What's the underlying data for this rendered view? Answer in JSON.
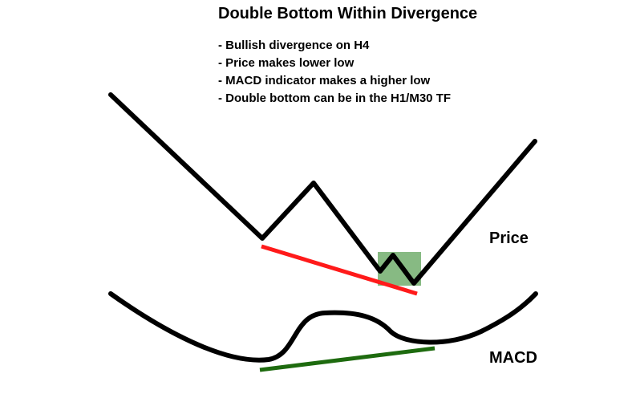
{
  "title": "Double Bottom Within Divergence",
  "bullets": [
    "Bullish divergence on H4",
    "Price makes lower low",
    "MACD indicator makes a higher low",
    "Double bottom can be in the H1/M30 TF"
  ],
  "labels": {
    "price": "Price",
    "macd": "MACD"
  },
  "colors": {
    "price_line": "#000000",
    "macd_line": "#000000",
    "price_divergence_line": "#ff1a1a",
    "macd_divergence_line": "#1e6b0f",
    "double_bottom_highlight": "#5fa35a"
  }
}
